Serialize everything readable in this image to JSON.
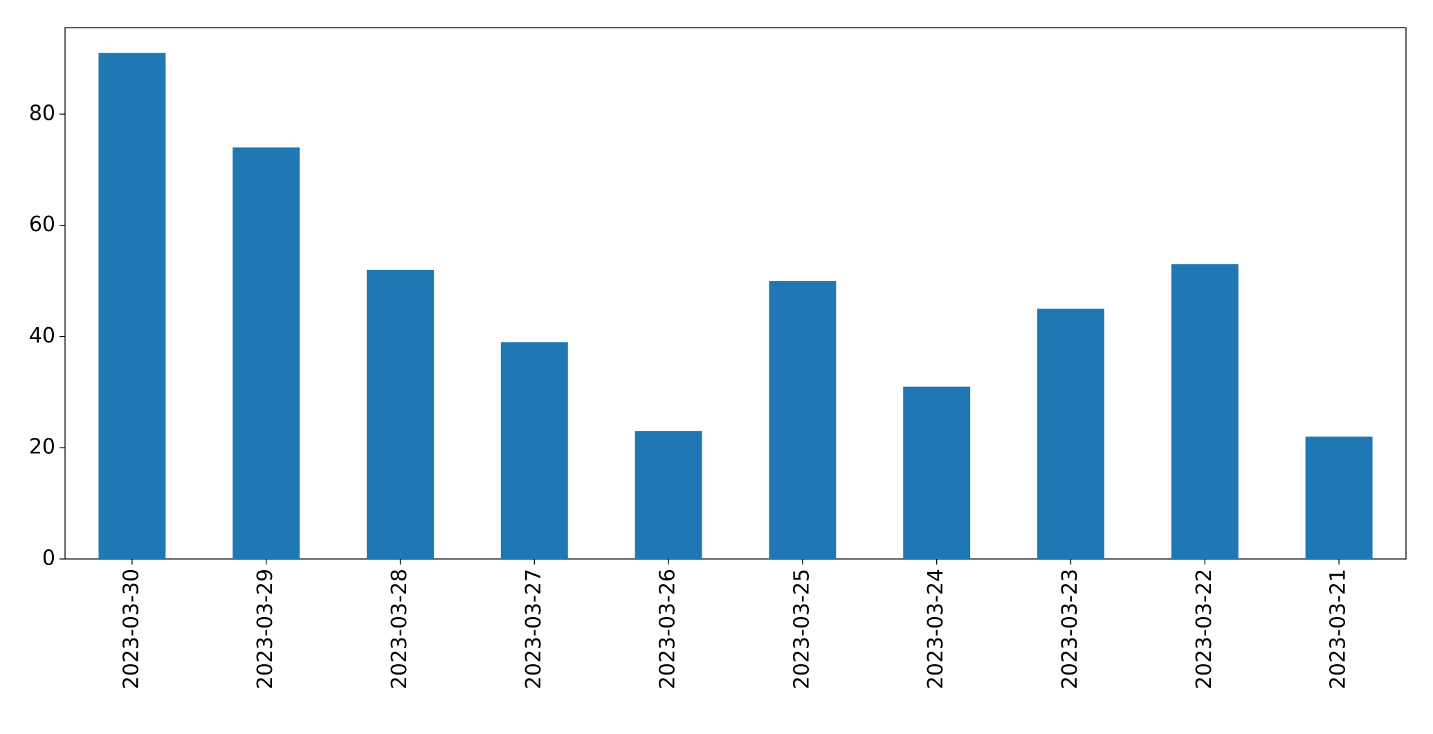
{
  "chart_data": {
    "type": "bar",
    "categories": [
      "2023-03-30",
      "2023-03-29",
      "2023-03-28",
      "2023-03-27",
      "2023-03-26",
      "2023-03-25",
      "2023-03-24",
      "2023-03-23",
      "2023-03-22",
      "2023-03-21"
    ],
    "values": [
      91,
      74,
      52,
      39,
      23,
      50,
      31,
      45,
      53,
      22
    ],
    "color": "#1f77b4",
    "ylim": [
      0,
      95.55
    ],
    "yticks": [
      0,
      20,
      40,
      60,
      80
    ],
    "grid": false
  }
}
